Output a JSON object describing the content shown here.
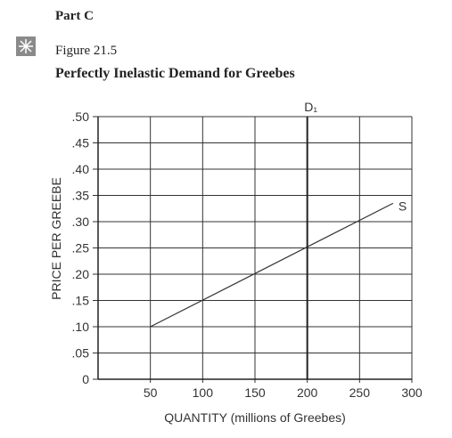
{
  "header": {
    "part": "Part C",
    "figure": "Figure 21.5"
  },
  "chart_data": {
    "type": "line",
    "title": "Perfectly Inelastic Demand for Greebes",
    "xlabel": "QUANTITY (millions of Greebes)",
    "ylabel": "PRICE PER GREEBE",
    "xlim": [
      0,
      300
    ],
    "ylim": [
      0,
      0.5
    ],
    "xticks": [
      50,
      100,
      150,
      200,
      250,
      300
    ],
    "yticks": [
      0,
      {
        "value": 0.05,
        "label": ".05"
      },
      {
        "value": 0.1,
        "label": ".10"
      },
      {
        "value": 0.15,
        "label": ".15"
      },
      {
        "value": 0.2,
        "label": ".20"
      },
      {
        "value": 0.25,
        "label": ".25"
      },
      {
        "value": 0.3,
        "label": ".30"
      },
      {
        "value": 0.35,
        "label": ".35"
      },
      {
        "value": 0.4,
        "label": ".40"
      },
      {
        "value": 0.45,
        "label": ".45"
      },
      {
        "value": 0.5,
        "label": ".50"
      }
    ],
    "grid": true,
    "series": [
      {
        "name": "S",
        "color": "#333333",
        "x": [
          50,
          282
        ],
        "values": [
          0.1,
          0.335
        ]
      },
      {
        "name": "D₁",
        "color": "#222222",
        "x": [
          200,
          200
        ],
        "values": [
          0,
          0.5
        ]
      }
    ]
  }
}
